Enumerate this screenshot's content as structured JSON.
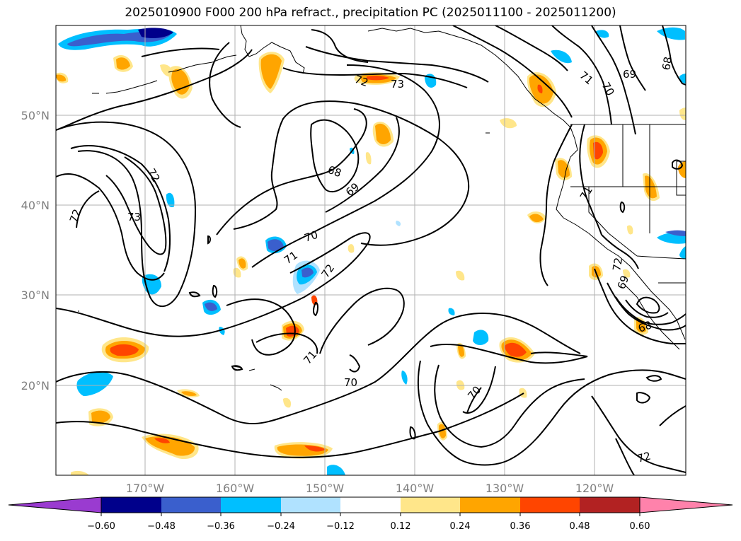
{
  "title": "2025010900 F000 200 hPa refract., precipitation PC (2025011100 - 2025011200)",
  "colors": {
    "grid": "#b0b0b0",
    "contour": "#000000",
    "neg1": "#9a3bd0",
    "neg2": "#00008b",
    "neg3": "#3a5fcd",
    "neg4": "#00bfff",
    "neg5": "#b0e2ff",
    "zero": "#ffffff",
    "pos1": "#ffe68a",
    "pos2": "#ffa500",
    "pos3": "#ff4500",
    "pos4": "#b22222",
    "pos5": "#ff82ab"
  },
  "axes": {
    "lat_labels": [
      "50°N",
      "40°N",
      "30°N",
      "20°N"
    ],
    "lon_labels": [
      "170°W",
      "160°W",
      "150°W",
      "140°W",
      "130°W",
      "120°W"
    ]
  },
  "colorbar": {
    "ticks": [
      "−0.60",
      "−0.48",
      "−0.36",
      "−0.24",
      "−0.12",
      "0.12",
      "0.24",
      "0.36",
      "0.48",
      "0.60"
    ]
  },
  "contour_labels": [
    "72",
    "73",
    "71",
    "70",
    "69",
    "68",
    "72",
    "73",
    "72",
    "68",
    "69",
    "70",
    "71",
    "72",
    "71",
    "70",
    "70",
    "72",
    "71",
    "69",
    "68",
    "72"
  ]
}
